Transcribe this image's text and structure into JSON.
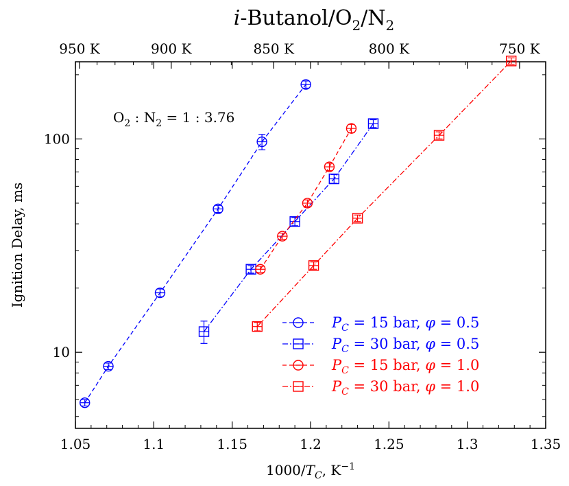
{
  "chart_data": {
    "type": "scatter",
    "title": "i-Butanol/O2/N2",
    "title_parts": {
      "italic": "i",
      "rest": "-Butanol/O",
      "sub1": "2",
      "slash": "/N",
      "sub2": "2"
    },
    "xlabel": "1000/T_C, K^-1",
    "xlabel_parts": {
      "prefix": "1000/",
      "T": "T",
      "sub": "C",
      "suffix": ", K",
      "sup": "−1"
    },
    "ylabel": "Ignition Delay, ms",
    "xlim": [
      1.05,
      1.35
    ],
    "ylim": [
      4.4,
      230
    ],
    "yscale": "log",
    "x_ticks": [
      "1.05",
      "1.1",
      "1.15",
      "1.2",
      "1.25",
      "1.3",
      "1.35"
    ],
    "x_tick_values": [
      1.05,
      1.1,
      1.15,
      1.2,
      1.25,
      1.3,
      1.35
    ],
    "y_ticks": [
      "10",
      "100"
    ],
    "y_tick_values": [
      10,
      100
    ],
    "top_axis_ticks": [
      "950 K",
      "900 K",
      "850 K",
      "800 K",
      "750 K"
    ],
    "top_axis_values": [
      950,
      900,
      850,
      800,
      750
    ],
    "annotation": {
      "prefix": "O",
      "sub1": "2",
      "mid": " : N",
      "sub2": "2",
      "suffix": " = 1 : 3.76"
    },
    "legend_position": "bottom-right",
    "grid": false,
    "series": [
      {
        "name": "P_C = 15 bar, φ = 0.5",
        "label": {
          "P": "P",
          "sub": "C",
          "text": " = 15 bar, ",
          "phi": "φ",
          "val": " = 0.5"
        },
        "color": "#0000ff",
        "marker": "circle",
        "line": "dashed",
        "x": [
          1.056,
          1.071,
          1.104,
          1.141,
          1.169,
          1.197
        ],
        "y": [
          5.8,
          8.6,
          19.0,
          47.0,
          97.0,
          180.0
        ],
        "err": [
          0.2,
          0.3,
          0.8,
          1.8,
          8.0,
          7.0
        ]
      },
      {
        "name": "P_C = 30 bar, φ = 0.5",
        "label": {
          "P": "P",
          "sub": "C",
          "text": " = 30 bar, ",
          "phi": "φ",
          "val": " = 0.5"
        },
        "color": "#0000ff",
        "marker": "square",
        "line": "dashdot",
        "x": [
          1.132,
          1.162,
          1.19,
          1.215,
          1.24
        ],
        "y": [
          12.5,
          24.5,
          41.0,
          65.0,
          118.0
        ],
        "err": [
          1.5,
          1.0,
          1.8,
          3.0,
          5.0
        ]
      },
      {
        "name": "P_C = 15 bar, φ = 1.0",
        "label": {
          "P": "P",
          "sub": "C",
          "text": " = 15 bar, ",
          "phi": "φ",
          "val": " = 1.0"
        },
        "color": "#ff0000",
        "marker": "circle",
        "line": "dashed",
        "x": [
          1.168,
          1.182,
          1.198,
          1.212,
          1.226
        ],
        "y": [
          24.5,
          35.0,
          50.0,
          74.0,
          112.0
        ],
        "err": [
          0.8,
          1.2,
          1.8,
          3.0,
          5.0
        ]
      },
      {
        "name": "P_C = 30 bar, φ = 1.0",
        "label": {
          "P": "P",
          "sub": "C",
          "text": " = 30 bar, ",
          "phi": "φ",
          "val": " = 1.0"
        },
        "color": "#ff0000",
        "marker": "square",
        "line": "dashdot",
        "x": [
          1.166,
          1.202,
          1.23,
          1.282,
          1.328
        ],
        "y": [
          13.2,
          25.5,
          42.5,
          104.0,
          232.0
        ],
        "err": [
          0.6,
          1.0,
          1.5,
          4.0,
          8.0
        ]
      }
    ]
  }
}
